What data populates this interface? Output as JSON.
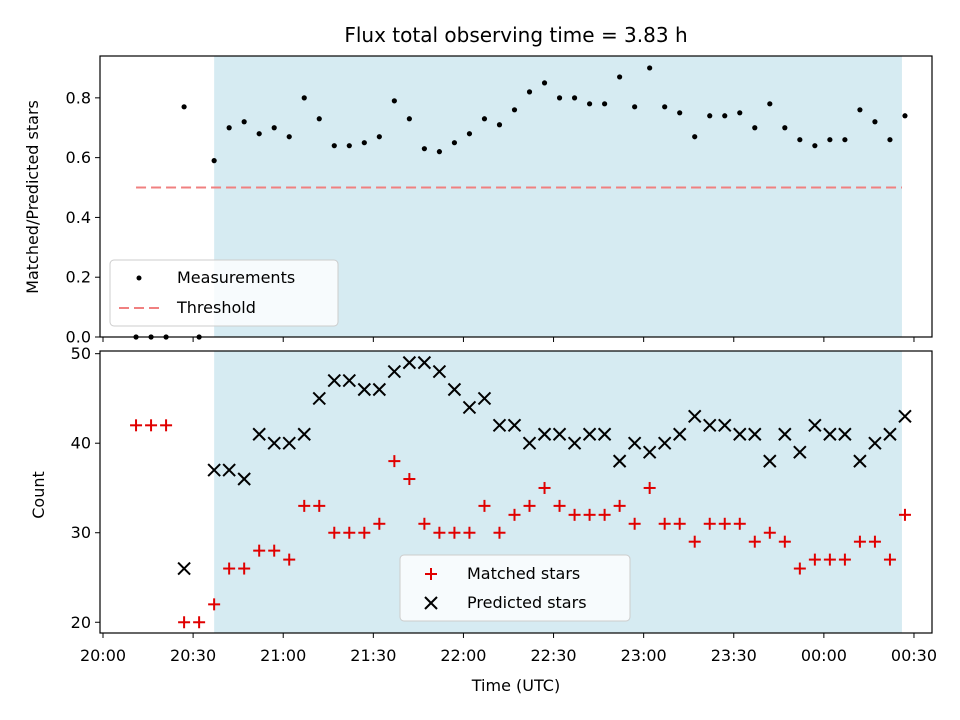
{
  "chart_data": [
    {
      "type": "scatter",
      "title": "Flux total observing time = 3.83 h",
      "xlabel": "",
      "ylabel": "Matched/Predicted stars",
      "ylim": [
        0,
        0.94
      ],
      "yticks": [
        0.0,
        0.2,
        0.4,
        0.6,
        0.8
      ],
      "ytick_labels": [
        "0.0",
        "0.2",
        "0.4",
        "0.6",
        "0.8"
      ],
      "xlim": [
        "19:59",
        "00:36"
      ],
      "shaded_interval": [
        "20:37",
        "00:26"
      ],
      "shade_color": "#add8e6",
      "legend_position": "lower left",
      "series": [
        {
          "name": "Measurements",
          "marker": "dot",
          "color": "#000000",
          "x": [
            "20:11",
            "20:16",
            "20:21",
            "20:27",
            "20:32",
            "20:37",
            "20:42",
            "20:47",
            "20:52",
            "20:57",
            "21:02",
            "21:07",
            "21:12",
            "21:17",
            "21:22",
            "21:27",
            "21:32",
            "21:37",
            "21:42",
            "21:47",
            "21:52",
            "21:57",
            "22:02",
            "22:07",
            "22:12",
            "22:17",
            "22:22",
            "22:27",
            "22:32",
            "22:37",
            "22:42",
            "22:47",
            "22:52",
            "22:57",
            "23:02",
            "23:07",
            "23:12",
            "23:17",
            "23:22",
            "23:27",
            "23:32",
            "23:37",
            "23:42",
            "23:47",
            "23:52",
            "23:57",
            "00:02",
            "00:07",
            "00:12",
            "00:17",
            "00:22",
            "00:27"
          ],
          "values": [
            0.0,
            0.0,
            0.0,
            0.77,
            0.0,
            0.59,
            0.7,
            0.72,
            0.68,
            0.7,
            0.67,
            0.8,
            0.73,
            0.64,
            0.64,
            0.65,
            0.67,
            0.79,
            0.73,
            0.63,
            0.62,
            0.65,
            0.68,
            0.73,
            0.71,
            0.76,
            0.82,
            0.85,
            0.8,
            0.8,
            0.78,
            0.78,
            0.87,
            0.77,
            0.9,
            0.77,
            0.75,
            0.67,
            0.74,
            0.74,
            0.75,
            0.7,
            0.78,
            0.7,
            0.66,
            0.64,
            0.66,
            0.66,
            0.76,
            0.72,
            0.66,
            0.74
          ]
        },
        {
          "name": "Threshold",
          "style": "dashed",
          "color": "#f08080",
          "x": [
            "20:11",
            "00:26"
          ],
          "values": [
            0.5,
            0.5
          ]
        }
      ]
    },
    {
      "type": "scatter",
      "xlabel": "Time (UTC)",
      "ylabel": "Count",
      "ylim": [
        18.8,
        50.3
      ],
      "yticks": [
        20,
        30,
        40,
        50
      ],
      "ytick_labels": [
        "20",
        "30",
        "40",
        "50"
      ],
      "xlim": [
        "19:59",
        "00:36"
      ],
      "xticks": [
        "20:00",
        "20:30",
        "21:00",
        "21:30",
        "22:00",
        "22:30",
        "23:00",
        "23:30",
        "00:00",
        "00:30"
      ],
      "shaded_interval": [
        "20:37",
        "00:26"
      ],
      "shade_color": "#add8e6",
      "legend_position": "lower center",
      "series": [
        {
          "name": "Matched stars",
          "marker": "plus",
          "color": "#e00000",
          "x": [
            "20:11",
            "20:16",
            "20:21",
            "20:27",
            "20:32",
            "20:37",
            "20:42",
            "20:47",
            "20:52",
            "20:57",
            "21:02",
            "21:07",
            "21:12",
            "21:17",
            "21:22",
            "21:27",
            "21:32",
            "21:37",
            "21:42",
            "21:47",
            "21:52",
            "21:57",
            "22:02",
            "22:07",
            "22:12",
            "22:17",
            "22:22",
            "22:27",
            "22:32",
            "22:37",
            "22:42",
            "22:47",
            "22:52",
            "22:57",
            "23:02",
            "23:07",
            "23:12",
            "23:17",
            "23:22",
            "23:27",
            "23:32",
            "23:37",
            "23:42",
            "23:47",
            "23:52",
            "23:57",
            "00:02",
            "00:07",
            "00:12",
            "00:17",
            "00:22",
            "00:27"
          ],
          "values": [
            42,
            42,
            42,
            20,
            20,
            22,
            26,
            26,
            28,
            28,
            27,
            33,
            33,
            30,
            30,
            30,
            31,
            38,
            36,
            31,
            30,
            30,
            30,
            33,
            30,
            32,
            33,
            35,
            33,
            32,
            32,
            32,
            33,
            31,
            35,
            31,
            31,
            29,
            31,
            31,
            31,
            29,
            30,
            29,
            26,
            27,
            27,
            27,
            29,
            29,
            27,
            32
          ]
        },
        {
          "name": "Predicted stars",
          "marker": "x",
          "color": "#000000",
          "x": [
            "20:27",
            "20:37",
            "20:42",
            "20:47",
            "20:52",
            "20:57",
            "21:02",
            "21:07",
            "21:12",
            "21:17",
            "21:22",
            "21:27",
            "21:32",
            "21:37",
            "21:42",
            "21:47",
            "21:52",
            "21:57",
            "22:02",
            "22:07",
            "22:12",
            "22:17",
            "22:22",
            "22:27",
            "22:32",
            "22:37",
            "22:42",
            "22:47",
            "22:52",
            "22:57",
            "23:02",
            "23:07",
            "23:12",
            "23:17",
            "23:22",
            "23:27",
            "23:32",
            "23:37",
            "23:42",
            "23:47",
            "23:52",
            "23:57",
            "00:02",
            "00:07",
            "00:12",
            "00:17",
            "00:22",
            "00:27"
          ],
          "values": [
            26,
            37,
            37,
            36,
            41,
            40,
            40,
            41,
            45,
            47,
            47,
            46,
            46,
            48,
            49,
            49,
            48,
            46,
            44,
            45,
            42,
            42,
            40,
            41,
            41,
            40,
            41,
            41,
            38,
            40,
            39,
            40,
            41,
            43,
            42,
            42,
            41,
            41,
            38,
            41,
            39,
            42,
            41,
            41,
            38,
            40,
            41,
            43
          ]
        }
      ]
    }
  ]
}
